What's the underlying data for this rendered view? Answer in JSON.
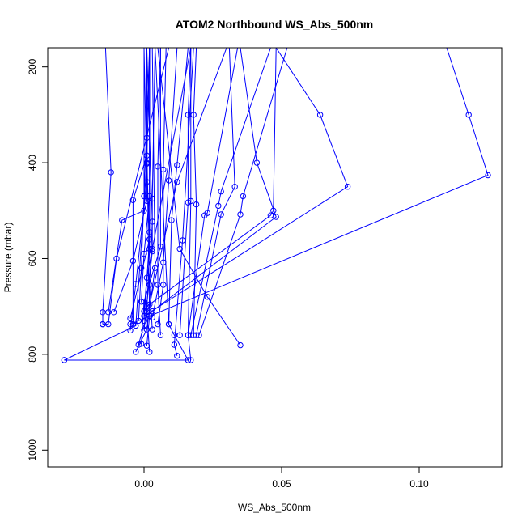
{
  "chart_data": {
    "type": "line",
    "title": "ATOM2 Northbound WS_Abs_500nm",
    "xlabel": "WS_Abs_500nm",
    "ylabel": "Pressure (mbar)",
    "xlim": [
      -0.035,
      0.13
    ],
    "ylim": [
      1035,
      160
    ],
    "y_reversed": true,
    "x_ticks": [
      0.0,
      0.05,
      0.1
    ],
    "x_tick_labels": [
      "0.00",
      "0.05",
      "0.10"
    ],
    "y_ticks": [
      200,
      400,
      600,
      800,
      1000
    ],
    "y_tick_labels": [
      "200",
      "400",
      "600",
      "800",
      "1000"
    ],
    "grid": false,
    "legend": "none",
    "color": "#0000ff",
    "series": [
      {
        "x": [
          -0.014,
          -0.012,
          -0.015,
          -0.015
        ],
        "y": [
          160,
          420,
          712,
          737
        ]
      },
      {
        "x": [
          -0.015,
          -0.013,
          -0.01,
          0.009
        ],
        "y": [
          737,
          737,
          600,
          160
        ]
      },
      {
        "x": [
          -0.029,
          -0.003,
          0.001,
          0.001
        ],
        "y": [
          812,
          740,
          400,
          160
        ]
      },
      {
        "x": [
          -0.029,
          0.016,
          0.011,
          0.009,
          0.004
        ],
        "y": [
          812,
          812,
          760,
          737,
          160
        ]
      },
      {
        "x": [
          -0.013,
          -0.008,
          0.0,
          0.0
        ],
        "y": [
          712,
          520,
          500,
          160
        ]
      },
      {
        "x": [
          -0.011,
          -0.004,
          0.001,
          0.001
        ],
        "y": [
          712,
          605,
          480,
          160
        ]
      },
      {
        "x": [
          -0.005,
          -0.003,
          0.001,
          0.0
        ],
        "y": [
          750,
          653,
          440,
          160
        ]
      },
      {
        "x": [
          -0.004,
          -0.004,
          0.001,
          0.001
        ],
        "y": [
          737,
          478,
          385,
          160
        ]
      },
      {
        "x": [
          -0.005,
          0.002,
          0.002,
          0.002
        ],
        "y": [
          725,
          560,
          545,
          160
        ]
      },
      {
        "x": [
          -0.002,
          0.002,
          0.012,
          0.03
        ],
        "y": [
          780,
          696,
          440,
          160
        ]
      },
      {
        "x": [
          -0.003,
          0.001,
          0.004,
          0.003
        ],
        "y": [
          795,
          748,
          620,
          160
        ]
      },
      {
        "x": [
          -0.001,
          0.0,
          0.006,
          0.006
        ],
        "y": [
          778,
          690,
          575,
          160
        ]
      },
      {
        "x": [
          -0.002,
          -0.001,
          0.0,
          0.002
        ],
        "y": [
          730,
          620,
          470,
          160
        ]
      },
      {
        "x": [
          -0.001,
          0.0,
          0.002,
          0.002
        ],
        "y": [
          690,
          590,
          470,
          160
        ]
      },
      {
        "x": [
          0.0,
          0.002,
          0.001,
          0.002
        ],
        "y": [
          730,
          560,
          402,
          160
        ]
      },
      {
        "x": [
          0.0,
          0.003,
          0.003,
          0.004
        ],
        "y": [
          750,
          585,
          475,
          160
        ]
      },
      {
        "x": [
          0.002,
          0.001,
          0.002,
          0.002
        ],
        "y": [
          795,
          712,
          580,
          160
        ]
      },
      {
        "x": [
          0.001,
          0.002,
          0.001,
          0.001
        ],
        "y": [
          782,
          720,
          348,
          160
        ]
      },
      {
        "x": [
          0.003,
          0.002,
          0.003,
          0.001
        ],
        "y": [
          748,
          655,
          523,
          160
        ]
      },
      {
        "x": [
          0.0,
          0.001,
          0.003,
          0.017
        ],
        "y": [
          710,
          640,
          580,
          160
        ]
      },
      {
        "x": [
          0.003,
          0.007,
          0.009,
          0.012
        ],
        "y": [
          723,
          608,
          437,
          160
        ]
      },
      {
        "x": [
          0.005,
          0.007,
          0.007,
          0.008
        ],
        "y": [
          737,
          655,
          414,
          160
        ]
      },
      {
        "x": [
          0.006,
          0.005,
          0.005,
          0.006
        ],
        "y": [
          760,
          655,
          408,
          160
        ]
      },
      {
        "x": [
          0.009,
          0.01,
          0.012,
          0.016
        ],
        "y": [
          737,
          520,
          405,
          160
        ]
      },
      {
        "x": [
          0.012,
          0.011,
          0.014,
          0.018
        ],
        "y": [
          803,
          780,
          562,
          160
        ]
      },
      {
        "x": [
          0.013,
          0.016,
          0.016,
          0.017
        ],
        "y": [
          760,
          483,
          300,
          160
        ]
      },
      {
        "x": [
          0.017,
          0.016,
          0.017,
          0.017
        ],
        "y": [
          812,
          760,
          480,
          160
        ]
      },
      {
        "x": [
          0.016,
          0.022,
          0.023,
          0.034
        ],
        "y": [
          760,
          510,
          505,
          160
        ]
      },
      {
        "x": [
          0.017,
          0.027,
          0.028,
          0.046
        ],
        "y": [
          760,
          490,
          460,
          160
        ]
      },
      {
        "x": [
          0.018,
          0.019,
          0.018,
          0.019
        ],
        "y": [
          760,
          487,
          300,
          160
        ]
      },
      {
        "x": [
          0.019,
          0.028,
          0.033,
          0.031
        ],
        "y": [
          760,
          508,
          450,
          160
        ]
      },
      {
        "x": [
          0.02,
          0.035,
          0.036,
          0.052
        ],
        "y": [
          760,
          508,
          470,
          160
        ]
      },
      {
        "x": [
          0.001,
          0.046,
          0.047,
          0.048
        ],
        "y": [
          700,
          510,
          500,
          160
        ]
      },
      {
        "x": [
          0.003,
          0.048,
          0.041,
          0.035
        ],
        "y": [
          710,
          513,
          400,
          160
        ]
      },
      {
        "x": [
          0.0,
          0.074,
          0.064,
          0.048
        ],
        "y": [
          720,
          450,
          300,
          160
        ]
      },
      {
        "x": [
          -0.005,
          0.125,
          0.118,
          0.11
        ],
        "y": [
          737,
          426,
          300,
          160
        ]
      },
      {
        "x": [
          0.035,
          0.023,
          0.013,
          0.005
        ],
        "y": [
          781,
          680,
          580,
          160
        ]
      }
    ]
  }
}
